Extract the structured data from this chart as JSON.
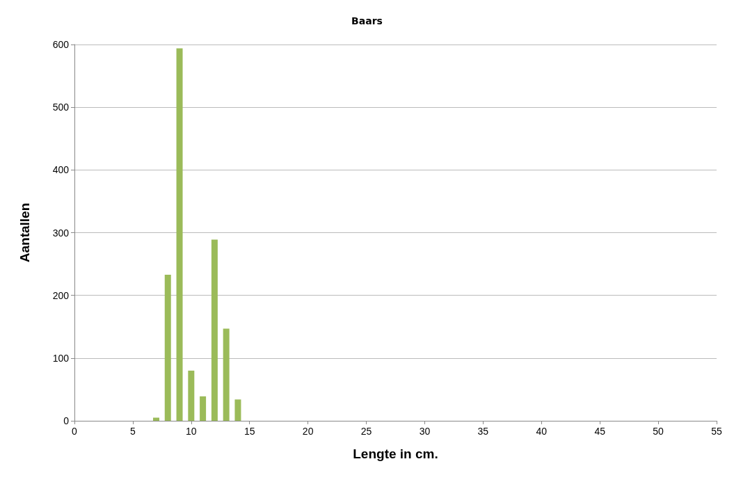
{
  "chart_data": {
    "type": "bar",
    "title": "Baars",
    "xlabel": "Lengte in cm.",
    "ylabel": "Aantallen",
    "x": [
      7,
      8,
      9,
      10,
      11,
      12,
      13,
      14
    ],
    "values": [
      5,
      233,
      594,
      80,
      39,
      289,
      147,
      34
    ],
    "color": "#9bbb59",
    "xlim": [
      0,
      55
    ],
    "xticks": [
      0,
      5,
      10,
      15,
      20,
      25,
      30,
      35,
      40,
      45,
      50,
      55
    ],
    "ylim": [
      0,
      600
    ],
    "yticks": [
      0,
      100,
      200,
      300,
      400,
      500,
      600
    ],
    "grid": "y"
  }
}
